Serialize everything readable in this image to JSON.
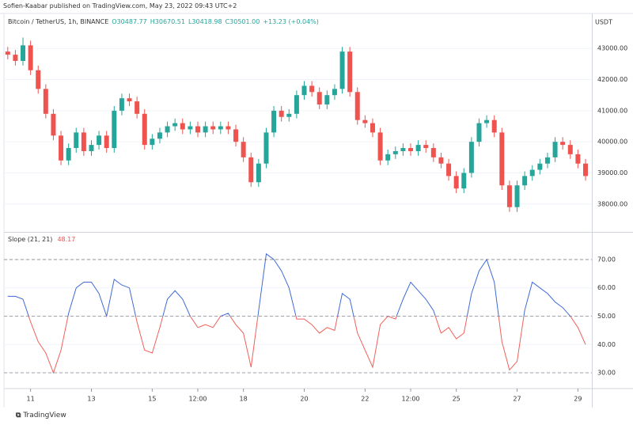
{
  "header": "Sofien-Kaabar published on TradingView.com, May 23, 2022 09:43 UTC+2",
  "footer": "TradingView",
  "chart_data": [
    {
      "type": "candlestick",
      "legend_title": "Bitcoin / TetherUS, 1h, BINANCE",
      "legend_values": [
        "O30487.77",
        "H30670.51",
        "L30418.98",
        "C30501.00",
        "+13.23 (+0.04%)"
      ],
      "axis_unit": "USDT",
      "up_color": "#26a69a",
      "down_color": "#ef5350",
      "ylim": [
        37130,
        44100
      ],
      "yticks": [
        {
          "value": 38000,
          "label": "38000.00"
        },
        {
          "value": 39000,
          "label": "39000.00"
        },
        {
          "value": 40000,
          "label": "40000.00"
        },
        {
          "value": 41000,
          "label": "41000.00"
        },
        {
          "value": 42000,
          "label": "42000.00"
        },
        {
          "value": 43000,
          "label": "43000.00"
        }
      ],
      "xlim": [
        -21,
        443
      ],
      "x": [
        -18,
        -12,
        -6,
        0,
        6,
        12,
        18,
        24,
        30,
        36,
        42,
        48,
        54,
        60,
        66,
        72,
        78,
        84,
        90,
        96,
        102,
        108,
        114,
        120,
        126,
        132,
        138,
        144,
        150,
        156,
        162,
        168,
        174,
        180,
        186,
        192,
        198,
        204,
        210,
        216,
        222,
        228,
        234,
        240,
        246,
        252,
        258,
        264,
        270,
        276,
        282,
        288,
        294,
        300,
        306,
        312,
        318,
        324,
        330,
        336,
        342,
        348,
        354,
        360,
        366,
        372,
        378,
        384,
        390,
        396,
        402,
        408,
        414,
        420,
        426,
        432,
        438
      ],
      "open": [
        42900,
        42800,
        42600,
        43100,
        42300,
        41700,
        40900,
        40200,
        39400,
        39800,
        40300,
        39700,
        39900,
        40200,
        39800,
        41000,
        41400,
        41300,
        40900,
        39900,
        40100,
        40300,
        40500,
        40600,
        40400,
        40500,
        40300,
        40500,
        40400,
        40500,
        40400,
        40000,
        39500,
        38700,
        39300,
        40300,
        41000,
        40800,
        40900,
        41500,
        41800,
        41600,
        41200,
        41500,
        41700,
        42900,
        41600,
        40700,
        40600,
        40300,
        39400,
        39600,
        39700,
        39800,
        39700,
        39900,
        39800,
        39500,
        39300,
        38900,
        38500,
        39000,
        40000,
        40600,
        40700,
        40300,
        38600,
        37900,
        38600,
        38900,
        39100,
        39300,
        39500,
        40000,
        39900,
        39600,
        39300
      ],
      "high": [
        43050,
        42950,
        43350,
        43250,
        42450,
        41850,
        41050,
        40350,
        39950,
        40450,
        40450,
        40050,
        40350,
        40350,
        41150,
        41550,
        41550,
        41450,
        41050,
        40250,
        40450,
        40650,
        40750,
        40750,
        40650,
        40650,
        40650,
        40650,
        40650,
        40650,
        40550,
        40150,
        39650,
        39450,
        40450,
        41150,
        41150,
        41050,
        41650,
        41950,
        41950,
        41750,
        41650,
        41850,
        43050,
        43050,
        41750,
        40850,
        40750,
        40450,
        39750,
        39850,
        39950,
        39950,
        40050,
        40050,
        39950,
        39650,
        39450,
        39050,
        39150,
        40150,
        40750,
        40850,
        40850,
        40450,
        38750,
        38750,
        39050,
        39250,
        39450,
        39650,
        40150,
        40150,
        40050,
        39750,
        39450
      ],
      "low": [
        42650,
        42450,
        42450,
        42150,
        41550,
        40750,
        40050,
        39250,
        39250,
        39650,
        39550,
        39550,
        39750,
        39650,
        39650,
        40850,
        41150,
        40750,
        39750,
        39750,
        39950,
        40150,
        40350,
        40250,
        40250,
        40150,
        40150,
        40250,
        40250,
        40250,
        39850,
        39350,
        38550,
        38550,
        39150,
        40150,
        40650,
        40650,
        40750,
        41350,
        41450,
        41050,
        41050,
        41350,
        41550,
        41450,
        40550,
        40450,
        40150,
        39250,
        39250,
        39450,
        39550,
        39550,
        39550,
        39650,
        39350,
        39150,
        38750,
        38350,
        38350,
        38850,
        39850,
        40450,
        40150,
        38450,
        37750,
        37750,
        38450,
        38750,
        38950,
        39150,
        39350,
        39750,
        39450,
        39150,
        38750
      ],
      "close": [
        42800,
        42600,
        43100,
        42300,
        41700,
        40900,
        40200,
        39400,
        39800,
        40300,
        39700,
        39900,
        40200,
        39800,
        41000,
        41400,
        41300,
        40900,
        39900,
        40100,
        40300,
        40500,
        40600,
        40400,
        40500,
        40300,
        40500,
        40400,
        40500,
        40400,
        40000,
        39500,
        38700,
        39300,
        40300,
        41000,
        40800,
        40900,
        41500,
        41800,
        41600,
        41200,
        41500,
        41700,
        42900,
        41600,
        40700,
        40600,
        40300,
        39400,
        39600,
        39700,
        39800,
        39700,
        39900,
        39800,
        39500,
        39300,
        38900,
        38500,
        39000,
        40000,
        40600,
        40700,
        40300,
        38600,
        37900,
        38600,
        38900,
        39100,
        39300,
        39500,
        40000,
        39900,
        39600,
        39300,
        38900
      ]
    },
    {
      "type": "line",
      "legend_title": "Slope (21, 21)",
      "legend_value": "48.17",
      "color_above": "#3f6ad8",
      "color_below": "#f0605a",
      "split_at": 50,
      "ylim": [
        24.7,
        79.2
      ],
      "yticks": [
        {
          "value": 30,
          "label": "30.00"
        },
        {
          "value": 40,
          "label": "40.00"
        },
        {
          "value": 50,
          "label": "50.00"
        },
        {
          "value": 60,
          "label": "60.00"
        },
        {
          "value": 70,
          "label": "70.00"
        }
      ],
      "hlines": [
        30,
        50,
        70
      ],
      "xlim": [
        -21,
        443
      ],
      "xticks": [
        {
          "value": 0,
          "label": "11"
        },
        {
          "value": 48,
          "label": "13"
        },
        {
          "value": 96,
          "label": "15"
        },
        {
          "value": 132,
          "label": "12:00"
        },
        {
          "value": 168,
          "label": "18"
        },
        {
          "value": 216,
          "label": "20"
        },
        {
          "value": 264,
          "label": "22"
        },
        {
          "value": 300,
          "label": "12:00"
        },
        {
          "value": 336,
          "label": "25"
        },
        {
          "value": 384,
          "label": "27"
        },
        {
          "value": 432,
          "label": "29"
        }
      ],
      "x": [
        -18,
        -12,
        -6,
        0,
        6,
        12,
        18,
        24,
        30,
        36,
        42,
        48,
        54,
        60,
        66,
        72,
        78,
        84,
        90,
        96,
        102,
        108,
        114,
        120,
        126,
        132,
        138,
        144,
        150,
        156,
        162,
        168,
        174,
        180,
        186,
        192,
        198,
        204,
        210,
        216,
        222,
        228,
        234,
        240,
        246,
        252,
        258,
        264,
        270,
        276,
        282,
        288,
        294,
        300,
        306,
        312,
        318,
        324,
        330,
        336,
        342,
        348,
        354,
        360,
        366,
        372,
        378,
        384,
        390,
        396,
        402,
        408,
        414,
        420,
        426,
        432,
        438
      ],
      "values": [
        57,
        57,
        56,
        48,
        41,
        37,
        30,
        38,
        51,
        60,
        62,
        62,
        58,
        50,
        63,
        61,
        60,
        48,
        38,
        37,
        46,
        56,
        59,
        56,
        50,
        46,
        47,
        46,
        50,
        51,
        47,
        44,
        32,
        52,
        72,
        70,
        66,
        60,
        49,
        49,
        47,
        44,
        46,
        45,
        58,
        56,
        44,
        38,
        32,
        47,
        50,
        49,
        56,
        62,
        59,
        56,
        52,
        44,
        46,
        42,
        44,
        58,
        66,
        70,
        62,
        41,
        31,
        34,
        52,
        62,
        60,
        58,
        55,
        53,
        50,
        46,
        40
      ]
    }
  ]
}
